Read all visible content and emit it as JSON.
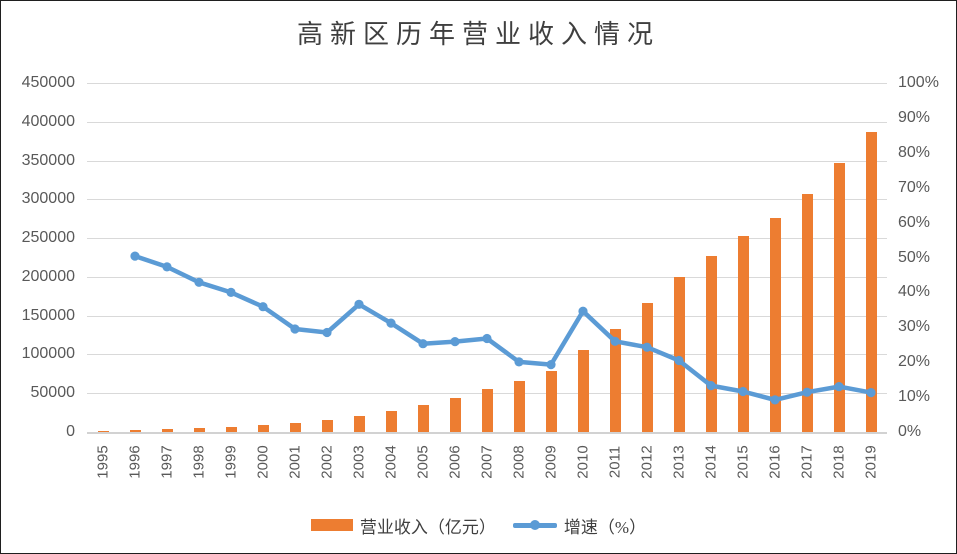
{
  "title": "高新区历年营业收入情况",
  "legend": {
    "revenue_label": "营业收入（亿元）",
    "growth_label": "增速（%）"
  },
  "colors": {
    "bar": "#ED7D31",
    "line": "#5B9BD5",
    "grid": "#D9D9D9",
    "axis_line": "#D2D2D2",
    "axis_text": "#595959",
    "title_text": "#3F3F3F"
  },
  "chart_data": {
    "type": "combo (bar + line, dual y-axis)",
    "title": "高新区历年营业收入情况",
    "categories": [
      "1995",
      "1996",
      "1997",
      "1998",
      "1999",
      "2000",
      "2001",
      "2002",
      "2003",
      "2004",
      "2005",
      "2006",
      "2007",
      "2008",
      "2009",
      "2010",
      "2011",
      "2012",
      "2013",
      "2014",
      "2015",
      "2016",
      "2017",
      "2018",
      "2019"
    ],
    "series": [
      {
        "name": "营业收入（亿元）",
        "type": "bar",
        "axis": "left",
        "color": "#ED7D31",
        "values": [
          1529,
          2300,
          3388,
          4840,
          6775,
          9209,
          11928,
          15326,
          20939,
          27466,
          34416,
          43320,
          54926,
          65986,
          78707,
          105917,
          133425,
          165848,
          199902,
          226491,
          252749,
          275978,
          307414,
          347248,
          386549
        ]
      },
      {
        "name": "增速（%）",
        "type": "line",
        "axis": "right",
        "color": "#5B9BD5",
        "values": [
          null,
          50.4,
          47.3,
          42.9,
          40.0,
          35.9,
          29.5,
          28.5,
          36.6,
          31.2,
          25.3,
          25.9,
          26.8,
          20.1,
          19.3,
          34.6,
          26.0,
          24.3,
          20.5,
          13.3,
          11.6,
          9.2,
          11.4,
          13.0,
          11.3
        ]
      }
    ],
    "left_axis": {
      "min": 0,
      "max": 450000,
      "step": 50000,
      "tick_values": [
        0,
        50000,
        100000,
        150000,
        200000,
        250000,
        300000,
        350000,
        400000,
        450000
      ],
      "tick_labels": [
        "0",
        "50000",
        "100000",
        "150000",
        "200000",
        "250000",
        "300000",
        "350000",
        "400000",
        "450000"
      ]
    },
    "right_axis": {
      "min": 0,
      "max": 100,
      "step": 10,
      "tick_values": [
        0,
        10,
        20,
        30,
        40,
        50,
        60,
        70,
        80,
        90,
        100
      ],
      "tick_labels": [
        "0%",
        "10%",
        "20%",
        "30%",
        "40%",
        "50%",
        "60%",
        "70%",
        "80%",
        "90%",
        "100%"
      ]
    },
    "grid": true,
    "legend_position": "bottom"
  }
}
